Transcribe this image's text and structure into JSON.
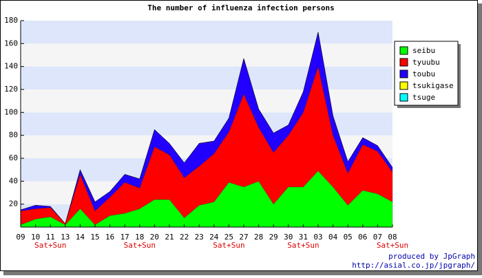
{
  "chart_data": {
    "type": "stacked_area",
    "title": "The number of influenza infection persons",
    "categories": [
      "09",
      "10",
      "11",
      "13",
      "14",
      "15",
      "16",
      "17",
      "18",
      "20",
      "21",
      "22",
      "23",
      "24",
      "25",
      "27",
      "28",
      "29",
      "30",
      "31",
      "03",
      "04",
      "05",
      "06",
      "07",
      "08"
    ],
    "x_notes": [
      null,
      null,
      "Sat+Sun",
      null,
      null,
      null,
      null,
      null,
      "Sat+Sun",
      null,
      null,
      null,
      null,
      null,
      "Sat+Sun",
      null,
      null,
      null,
      null,
      "Sat+Sun",
      null,
      null,
      null,
      null,
      null,
      "Sat+Sun"
    ],
    "series": [
      {
        "name": "seibu",
        "color": "#00ff00",
        "values": [
          2,
          7,
          9,
          2,
          16,
          2,
          10,
          12,
          16,
          24,
          24,
          8,
          19,
          22,
          39,
          35,
          40,
          20,
          35,
          35,
          49,
          35,
          19,
          32,
          29,
          22
        ]
      },
      {
        "name": "tyuubu",
        "color": "#ff0000",
        "values": [
          12,
          9,
          8,
          1,
          30,
          12,
          16,
          27,
          18,
          46,
          39,
          35,
          34,
          42,
          44,
          81,
          47,
          45,
          45,
          65,
          91,
          45,
          28,
          40,
          37,
          26
        ]
      },
      {
        "name": "toubu",
        "color": "#2200ff",
        "values": [
          1,
          3,
          1,
          0,
          4,
          8,
          5,
          7,
          8,
          15,
          10,
          13,
          20,
          11,
          12,
          31,
          16,
          17,
          9,
          18,
          30,
          17,
          10,
          6,
          5,
          4
        ]
      },
      {
        "name": "tsukigase",
        "color": "#ffff00",
        "values": [
          0,
          0,
          0,
          0,
          0,
          0,
          0,
          0,
          0,
          0,
          0,
          0,
          0,
          0,
          0,
          0,
          0,
          0,
          0,
          0,
          0,
          0,
          0,
          0,
          0,
          0
        ]
      },
      {
        "name": "tsuge",
        "color": "#00ffff",
        "values": [
          0,
          0,
          0,
          0,
          0,
          0,
          0,
          0,
          0,
          0,
          0,
          0,
          0,
          0,
          0,
          0,
          0,
          0,
          0,
          0,
          0,
          0,
          0,
          0,
          0,
          0
        ]
      }
    ],
    "ylim": [
      0,
      180
    ],
    "yticks": [
      20,
      40,
      60,
      80,
      100,
      120,
      140,
      160,
      180
    ],
    "band_colors": [
      "#dde6fa",
      "#f5f5f5"
    ],
    "footer": [
      "produced by JpGraph",
      "http://asial.co.jp/jpgraph/"
    ]
  }
}
